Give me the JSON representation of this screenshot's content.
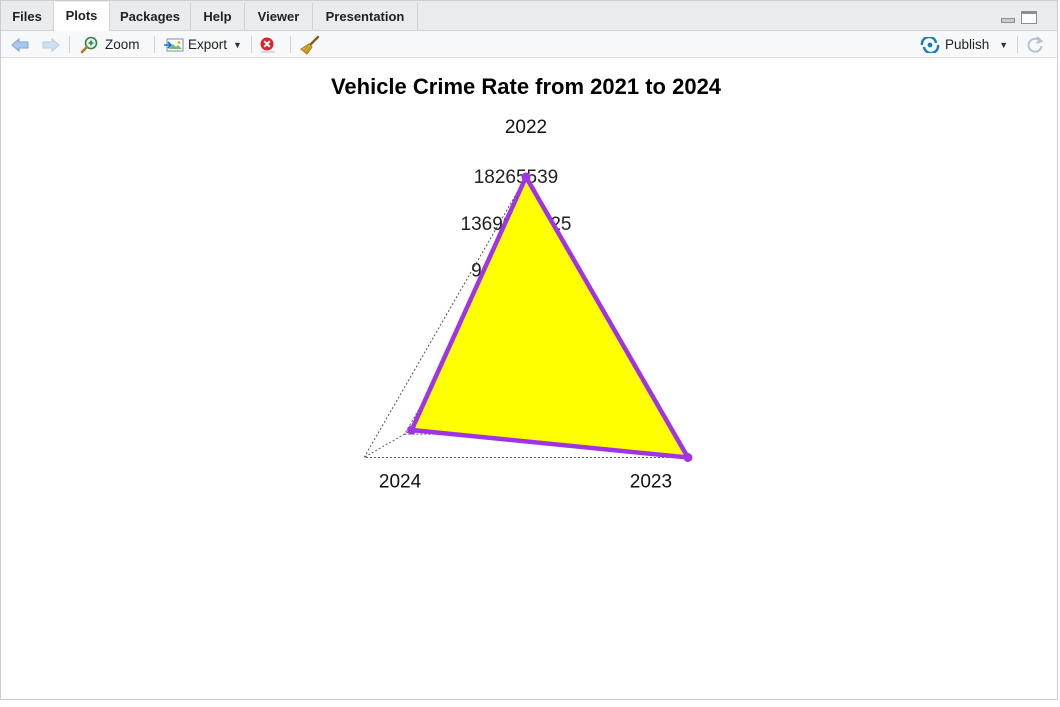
{
  "tabs": [
    {
      "label": "Files"
    },
    {
      "label": "Plots"
    },
    {
      "label": "Packages"
    },
    {
      "label": "Help"
    },
    {
      "label": "Viewer"
    },
    {
      "label": "Presentation"
    }
  ],
  "toolbar": {
    "zoom_label": "Zoom",
    "export_label": "Export",
    "publish_label": "Publish"
  },
  "chart_data": {
    "type": "radar",
    "title": "Vehicle Crime Rate from 2021 to 2024",
    "axes": [
      "2022",
      "2023",
      "2024"
    ],
    "axis_max": 18265539,
    "grid_labels": [
      "18265539",
      "13699154.25",
      "9132769.5"
    ],
    "grid_levels": 4,
    "series": [
      {
        "values": [
          18265539,
          18265539,
          12900000
        ],
        "fill": "#ffff00",
        "line": "#a033e6"
      }
    ]
  },
  "colors": {
    "accent": "#1a7ac0",
    "series_fill": "#ffff00",
    "series_line": "#a033e6",
    "grid": "#555555"
  }
}
